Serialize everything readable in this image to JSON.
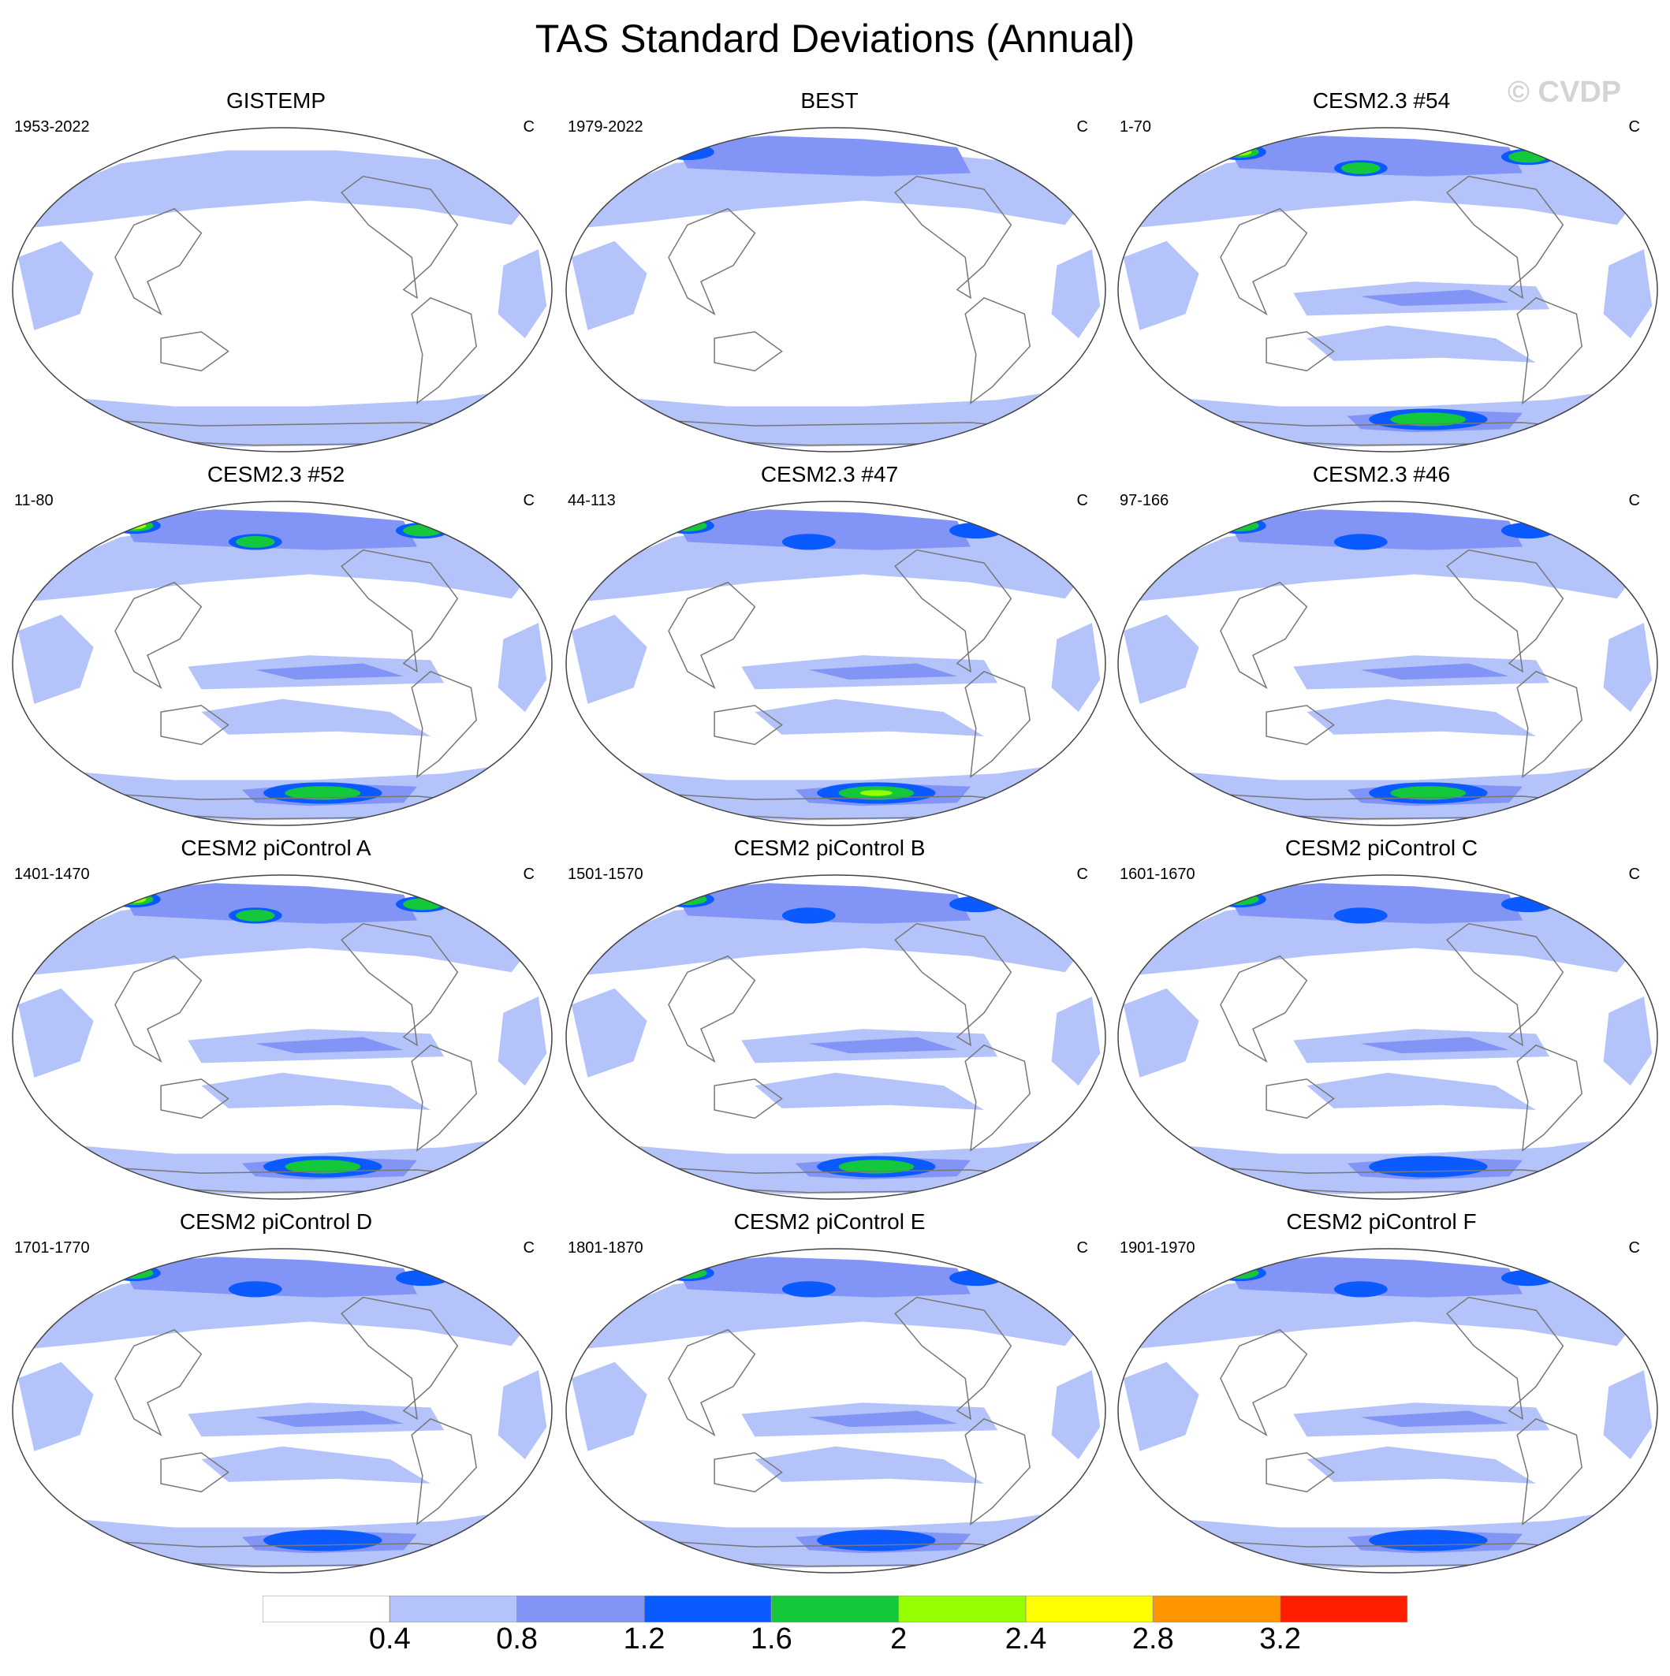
{
  "title": "TAS Standard Deviations (Annual)",
  "watermark": "© CVDP",
  "units": "C",
  "panels": [
    {
      "title": "GISTEMP",
      "years": "1953-2022",
      "units": "C"
    },
    {
      "title": "BEST",
      "years": "1979-2022",
      "units": "C"
    },
    {
      "title": "CESM2.3 #54",
      "years": "1-70",
      "units": "C"
    },
    {
      "title": "CESM2.3 #52",
      "years": "11-80",
      "units": "C"
    },
    {
      "title": "CESM2.3 #47",
      "years": "44-113",
      "units": "C"
    },
    {
      "title": "CESM2.3 #46",
      "years": "97-166",
      "units": "C"
    },
    {
      "title": "CESM2 piControl A",
      "years": "1401-1470",
      "units": "C"
    },
    {
      "title": "CESM2 piControl B",
      "years": "1501-1570",
      "units": "C"
    },
    {
      "title": "CESM2 piControl C",
      "years": "1601-1670",
      "units": "C"
    },
    {
      "title": "CESM2 piControl D",
      "years": "1701-1770",
      "units": "C"
    },
    {
      "title": "CESM2 piControl E",
      "years": "1801-1870",
      "units": "C"
    },
    {
      "title": "CESM2 piControl F",
      "years": "1901-1970",
      "units": "C"
    }
  ],
  "colorbar": {
    "labels": [
      "0.4",
      "0.8",
      "1.2",
      "1.6",
      "2",
      "2.4",
      "2.8",
      "3.2"
    ],
    "colors": [
      "#ffffff",
      "#b4c3fa",
      "#8294f5",
      "#0a5aff",
      "#14c83c",
      "#96ff00",
      "#ffff00",
      "#ff9600",
      "#ff1e00"
    ]
  }
}
